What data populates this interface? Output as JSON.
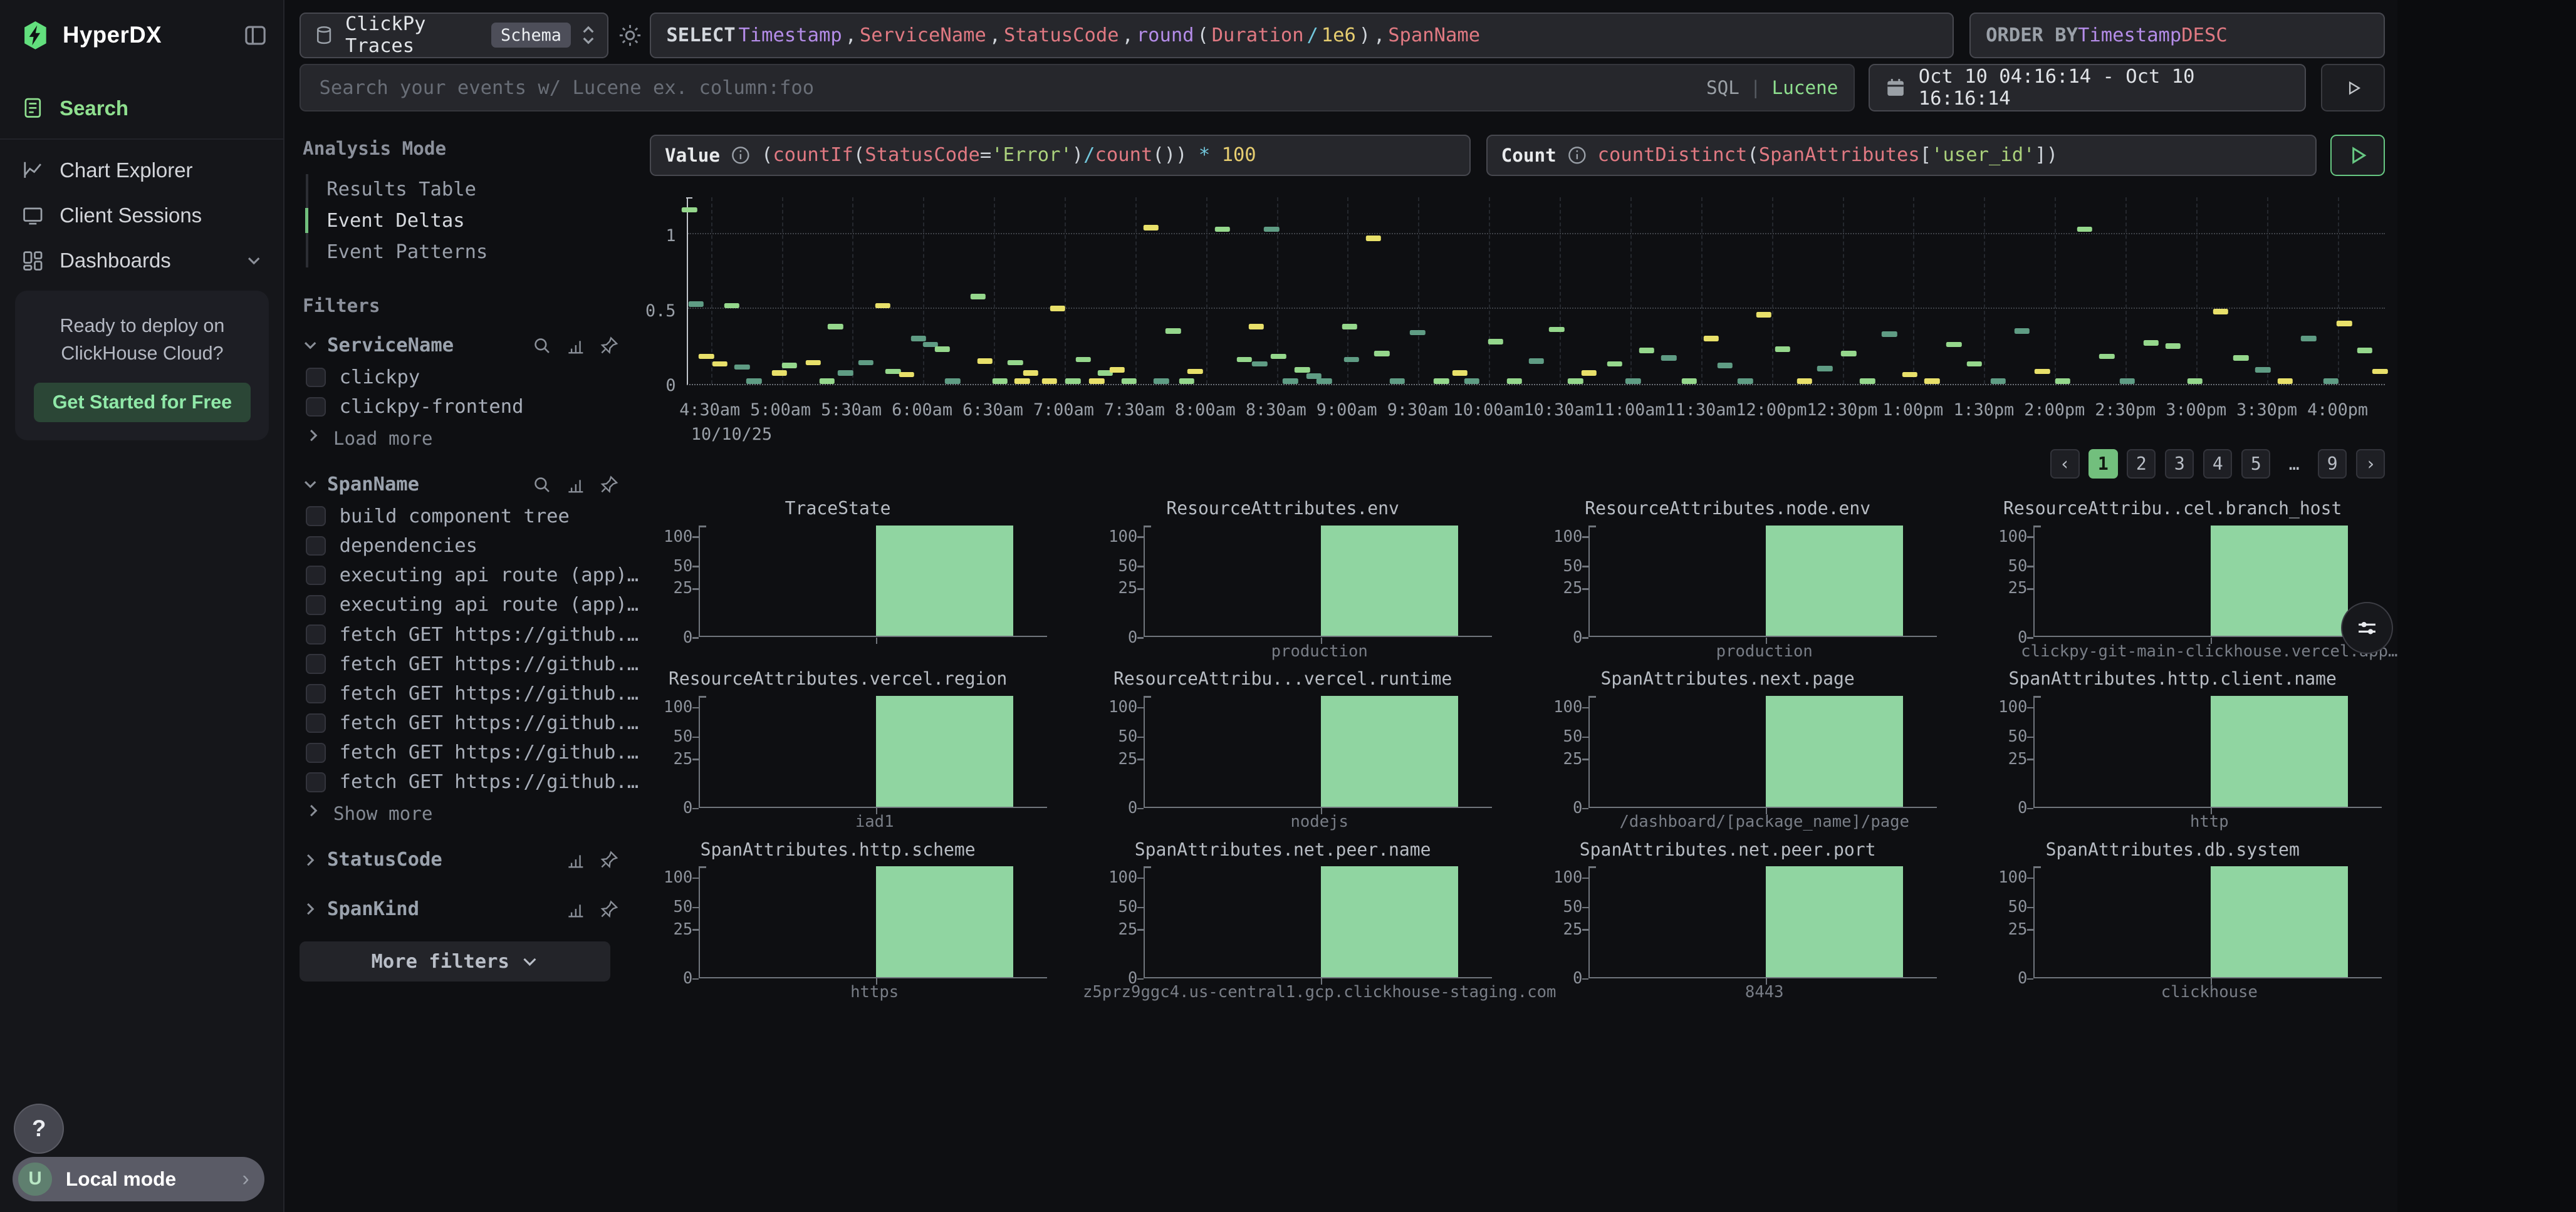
{
  "sidebar": {
    "logo_text": "HyperDX",
    "nav": [
      {
        "label": "Search",
        "icon": "search-doc-icon",
        "active": true
      },
      {
        "label": "Chart Explorer",
        "icon": "chart-line-icon",
        "active": false
      },
      {
        "label": "Client Sessions",
        "icon": "monitor-icon",
        "active": false
      },
      {
        "label": "Dashboards",
        "icon": "grid-icon",
        "active": false,
        "chevron": true
      }
    ],
    "promo": {
      "text": "Ready to deploy on ClickHouse Cloud?",
      "cta": "Get Started for Free"
    },
    "help_label": "?",
    "local_mode": {
      "avatar": "U",
      "label": "Local mode"
    }
  },
  "topbar": {
    "source": {
      "name": "ClickPy Traces",
      "badge": "Schema"
    },
    "select_tokens": [
      [
        "SELECT ",
        "kw"
      ],
      [
        "Timestamp",
        "purple"
      ],
      [
        ", ",
        "fg"
      ],
      [
        "ServiceName",
        "red"
      ],
      [
        ", ",
        "fg"
      ],
      [
        "StatusCode",
        "red"
      ],
      [
        ", ",
        "fg"
      ],
      [
        "round",
        "purple"
      ],
      [
        "(",
        "fg"
      ],
      [
        "Duration",
        "red"
      ],
      [
        " / ",
        "cyan"
      ],
      [
        "1e6",
        "num"
      ],
      [
        ")",
        "fg"
      ],
      [
        ", ",
        "fg"
      ],
      [
        "SpanName",
        "red"
      ]
    ],
    "order_tokens": [
      [
        "ORDER BY ",
        "kw2"
      ],
      [
        "Timestamp",
        "purple"
      ],
      [
        " ",
        "fg"
      ],
      [
        "DESC",
        "red"
      ]
    ],
    "search_placeholder": "Search your events w/ Lucene ex. column:foo",
    "lang_toggle": {
      "sql": "SQL",
      "divider": "|",
      "lucene": "Lucene"
    },
    "date_range": "Oct 10 04:16:14 - Oct 10 16:16:14"
  },
  "analysis": {
    "title": "Analysis Mode",
    "options": [
      {
        "label": "Results Table",
        "active": false
      },
      {
        "label": "Event Deltas",
        "active": true
      },
      {
        "label": "Event Patterns",
        "active": false
      }
    ]
  },
  "filters": {
    "title": "Filters",
    "groups": [
      {
        "name": "ServiceName",
        "expanded": true,
        "icons": [
          "search-icon",
          "bars-icon",
          "pin-icon"
        ],
        "items": [
          "clickpy",
          "clickpy-frontend"
        ],
        "more": "Load more"
      },
      {
        "name": "SpanName",
        "expanded": true,
        "icons": [
          "search-icon",
          "bars-icon",
          "pin-icon"
        ],
        "items": [
          "build component tree",
          "dependencies",
          "executing api route (app)…",
          "executing api route (app)…",
          "fetch GET https://github.…",
          "fetch GET https://github.…",
          "fetch GET https://github.…",
          "fetch GET https://github.…",
          "fetch GET https://github.…",
          "fetch GET https://github.…"
        ],
        "more": "Show more"
      },
      {
        "name": "StatusCode",
        "expanded": false,
        "icons": [
          "bars-icon",
          "pin-icon"
        ],
        "items": []
      },
      {
        "name": "SpanKind",
        "expanded": false,
        "icons": [
          "bars-icon",
          "pin-icon"
        ],
        "items": []
      }
    ],
    "more_button": "More filters"
  },
  "query": {
    "value_label": "Value",
    "value_tokens": [
      [
        "(",
        "fg"
      ],
      [
        "countIf",
        "red"
      ],
      [
        "(",
        "fg"
      ],
      [
        "StatusCode",
        "red"
      ],
      [
        "=",
        "fg"
      ],
      [
        "'Error'",
        "str"
      ],
      [
        ")",
        "fg"
      ],
      [
        "/",
        "cyan"
      ],
      [
        "count",
        "red"
      ],
      [
        "()",
        "fg"
      ],
      [
        ")",
        "fg"
      ],
      [
        " * ",
        "cyan"
      ],
      [
        "100",
        "num"
      ]
    ],
    "count_label": "Count",
    "count_tokens": [
      [
        "countDistinct",
        "red"
      ],
      [
        "(",
        "fg"
      ],
      [
        "SpanAttributes",
        "red"
      ],
      [
        "[",
        "fg"
      ],
      [
        "'user_id'",
        "str"
      ],
      [
        "]",
        "fg"
      ],
      [
        ")",
        "fg"
      ]
    ]
  },
  "pagination": {
    "prev": "‹",
    "pages": [
      "1",
      "2",
      "3",
      "4",
      "5",
      "…",
      "9"
    ],
    "active": "1",
    "next": "›"
  },
  "chart_data": [
    {
      "type": "scatter",
      "title": "",
      "y_ticks": [
        "1",
        "0.5",
        "0"
      ],
      "ylim": [
        0,
        1.25
      ],
      "x_date_label": "10/10/25",
      "x_ticks": [
        "4:30am",
        "5:00am",
        "5:30am",
        "6:00am",
        "6:30am",
        "7:00am",
        "7:30am",
        "8:00am",
        "8:30am",
        "9:00am",
        "9:30am",
        "10:00am",
        "10:30am",
        "11:00am",
        "11:30am",
        "12:00pm",
        "12:30pm",
        "1:00pm",
        "1:30pm",
        "2:00pm",
        "2:30pm",
        "3:00pm",
        "3:30pm",
        "4:00pm"
      ],
      "colors": {
        "y": "#e8e06a",
        "g": "#95d78c",
        "t": "#5f9c84"
      },
      "points": [
        [
          0.001,
          1.16,
          "g"
        ],
        [
          0.005,
          0.53,
          "t"
        ],
        [
          0.011,
          0.18,
          "y"
        ],
        [
          0.019,
          0.13,
          "y"
        ],
        [
          0.026,
          0.52,
          "g"
        ],
        [
          0.032,
          0.11,
          "t"
        ],
        [
          0.039,
          0.015,
          "t"
        ],
        [
          0.054,
          0.07,
          "y"
        ],
        [
          0.06,
          0.12,
          "g"
        ],
        [
          0.074,
          0.14,
          "y"
        ],
        [
          0.082,
          0.015,
          "g"
        ],
        [
          0.087,
          0.38,
          "g"
        ],
        [
          0.093,
          0.07,
          "t"
        ],
        [
          0.105,
          0.14,
          "t"
        ],
        [
          0.115,
          0.52,
          "y"
        ],
        [
          0.121,
          0.08,
          "g"
        ],
        [
          0.129,
          0.06,
          "y"
        ],
        [
          0.136,
          0.3,
          "t"
        ],
        [
          0.143,
          0.26,
          "t"
        ],
        [
          0.15,
          0.23,
          "g"
        ],
        [
          0.156,
          0.015,
          "t"
        ],
        [
          0.171,
          0.58,
          "g"
        ],
        [
          0.175,
          0.15,
          "y"
        ],
        [
          0.184,
          0.015,
          "g"
        ],
        [
          0.193,
          0.14,
          "g"
        ],
        [
          0.197,
          0.015,
          "y"
        ],
        [
          0.202,
          0.07,
          "y"
        ],
        [
          0.213,
          0.015,
          "y"
        ],
        [
          0.218,
          0.5,
          "y"
        ],
        [
          0.227,
          0.015,
          "g"
        ],
        [
          0.233,
          0.16,
          "g"
        ],
        [
          0.241,
          0.015,
          "y"
        ],
        [
          0.246,
          0.07,
          "g"
        ],
        [
          0.253,
          0.09,
          "y"
        ],
        [
          0.26,
          0.015,
          "g"
        ],
        [
          0.273,
          1.04,
          "y"
        ],
        [
          0.279,
          0.015,
          "t"
        ],
        [
          0.286,
          0.35,
          "g"
        ],
        [
          0.294,
          0.015,
          "g"
        ],
        [
          0.299,
          0.08,
          "y"
        ],
        [
          0.315,
          1.03,
          "g"
        ],
        [
          0.328,
          0.16,
          "g"
        ],
        [
          0.335,
          0.38,
          "y"
        ],
        [
          0.337,
          0.13,
          "t"
        ],
        [
          0.344,
          1.03,
          "t"
        ],
        [
          0.348,
          0.18,
          "g"
        ],
        [
          0.355,
          0.015,
          "t"
        ],
        [
          0.362,
          0.09,
          "g"
        ],
        [
          0.369,
          0.05,
          "t"
        ],
        [
          0.375,
          0.015,
          "t"
        ],
        [
          0.39,
          0.38,
          "g"
        ],
        [
          0.391,
          0.16,
          "t"
        ],
        [
          0.404,
          0.97,
          "y"
        ],
        [
          0.409,
          0.2,
          "g"
        ],
        [
          0.418,
          0.015,
          "t"
        ],
        [
          0.43,
          0.34,
          "t"
        ],
        [
          0.444,
          0.015,
          "g"
        ],
        [
          0.455,
          0.07,
          "y"
        ],
        [
          0.462,
          0.015,
          "t"
        ],
        [
          0.476,
          0.28,
          "g"
        ],
        [
          0.487,
          0.015,
          "g"
        ],
        [
          0.5,
          0.15,
          "t"
        ],
        [
          0.512,
          0.36,
          "g"
        ],
        [
          0.523,
          0.015,
          "g"
        ],
        [
          0.531,
          0.07,
          "y"
        ],
        [
          0.546,
          0.13,
          "g"
        ],
        [
          0.557,
          0.015,
          "t"
        ],
        [
          0.565,
          0.22,
          "g"
        ],
        [
          0.578,
          0.17,
          "t"
        ],
        [
          0.59,
          0.015,
          "g"
        ],
        [
          0.603,
          0.3,
          "y"
        ],
        [
          0.611,
          0.12,
          "t"
        ],
        [
          0.623,
          0.015,
          "t"
        ],
        [
          0.634,
          0.46,
          "y"
        ],
        [
          0.645,
          0.23,
          "g"
        ],
        [
          0.658,
          0.015,
          "y"
        ],
        [
          0.67,
          0.1,
          "t"
        ],
        [
          0.684,
          0.2,
          "g"
        ],
        [
          0.695,
          0.015,
          "g"
        ],
        [
          0.708,
          0.33,
          "t"
        ],
        [
          0.72,
          0.06,
          "y"
        ],
        [
          0.733,
          0.015,
          "y"
        ],
        [
          0.746,
          0.26,
          "g"
        ],
        [
          0.758,
          0.13,
          "g"
        ],
        [
          0.772,
          0.015,
          "t"
        ],
        [
          0.786,
          0.35,
          "t"
        ],
        [
          0.798,
          0.08,
          "y"
        ],
        [
          0.81,
          0.015,
          "g"
        ],
        [
          0.823,
          1.03,
          "g"
        ],
        [
          0.836,
          0.18,
          "g"
        ],
        [
          0.848,
          0.015,
          "t"
        ],
        [
          0.862,
          0.27,
          "g"
        ],
        [
          0.875,
          0.25,
          "g"
        ],
        [
          0.888,
          0.015,
          "g"
        ],
        [
          0.903,
          0.48,
          "y"
        ],
        [
          0.915,
          0.17,
          "g"
        ],
        [
          0.928,
          0.09,
          "t"
        ],
        [
          0.941,
          0.015,
          "y"
        ],
        [
          0.955,
          0.3,
          "t"
        ],
        [
          0.968,
          0.015,
          "t"
        ],
        [
          0.976,
          0.4,
          "y"
        ],
        [
          0.988,
          0.22,
          "g"
        ],
        [
          0.997,
          0.08,
          "y"
        ]
      ]
    },
    {
      "type": "bar",
      "title": "TraceState",
      "categories": [
        ""
      ],
      "values": [
        100
      ],
      "y_ticks": [
        "100",
        "50",
        "25",
        "0"
      ],
      "bar_color": "#90d5a1"
    },
    {
      "type": "bar",
      "title": "ResourceAttributes.env",
      "categories": [
        "production"
      ],
      "values": [
        100
      ],
      "y_ticks": [
        "100",
        "50",
        "25",
        "0"
      ],
      "bar_color": "#90d5a1"
    },
    {
      "type": "bar",
      "title": "ResourceAttributes.node.env",
      "categories": [
        "production"
      ],
      "values": [
        100
      ],
      "y_ticks": [
        "100",
        "50",
        "25",
        "0"
      ],
      "bar_color": "#90d5a1"
    },
    {
      "type": "bar",
      "title": "ResourceAttribu..cel.branch_host",
      "categories": [
        "clickpy-git-main-clickhouse.vercel.app…"
      ],
      "values": [
        100
      ],
      "y_ticks": [
        "100",
        "50",
        "25",
        "0"
      ],
      "bar_color": "#90d5a1"
    },
    {
      "type": "bar",
      "title": "ResourceAttributes.vercel.region",
      "categories": [
        "iad1"
      ],
      "values": [
        100
      ],
      "y_ticks": [
        "100",
        "50",
        "25",
        "0"
      ],
      "bar_color": "#90d5a1"
    },
    {
      "type": "bar",
      "title": "ResourceAttribu...vercel.runtime",
      "categories": [
        "nodejs"
      ],
      "values": [
        100
      ],
      "y_ticks": [
        "100",
        "50",
        "25",
        "0"
      ],
      "bar_color": "#90d5a1"
    },
    {
      "type": "bar",
      "title": "SpanAttributes.next.page",
      "categories": [
        "/dashboard/[package_name]/page"
      ],
      "values": [
        100
      ],
      "y_ticks": [
        "100",
        "50",
        "25",
        "0"
      ],
      "bar_color": "#90d5a1"
    },
    {
      "type": "bar",
      "title": "SpanAttributes.http.client.name",
      "categories": [
        "http"
      ],
      "values": [
        100
      ],
      "y_ticks": [
        "100",
        "50",
        "25",
        "0"
      ],
      "bar_color": "#90d5a1"
    },
    {
      "type": "bar",
      "title": "SpanAttributes.http.scheme",
      "categories": [
        "https"
      ],
      "values": [
        100
      ],
      "y_ticks": [
        "100",
        "50",
        "25",
        "0"
      ],
      "bar_color": "#90d5a1"
    },
    {
      "type": "bar",
      "title": "SpanAttributes.net.peer.name",
      "categories": [
        "z5prz9ggc4.us-central1.gcp.clickhouse-staging.com"
      ],
      "values": [
        100
      ],
      "y_ticks": [
        "100",
        "50",
        "25",
        "0"
      ],
      "bar_color": "#90d5a1"
    },
    {
      "type": "bar",
      "title": "SpanAttributes.net.peer.port",
      "categories": [
        "8443"
      ],
      "values": [
        100
      ],
      "y_ticks": [
        "100",
        "50",
        "25",
        "0"
      ],
      "bar_color": "#90d5a1"
    },
    {
      "type": "bar",
      "title": "SpanAttributes.db.system",
      "categories": [
        "clickhouse"
      ],
      "values": [
        100
      ],
      "y_ticks": [
        "100",
        "50",
        "25",
        "0"
      ],
      "bar_color": "#90d5a1"
    }
  ]
}
